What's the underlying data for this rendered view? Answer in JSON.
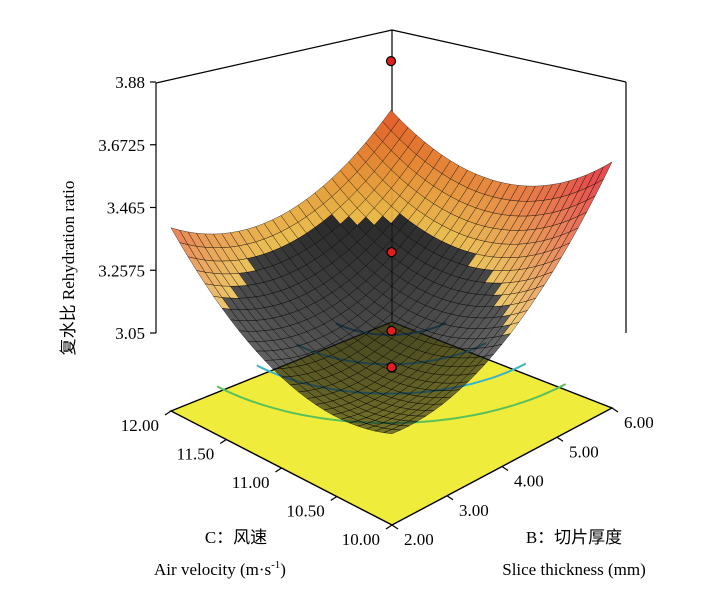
{
  "chart_data": {
    "type": "surface3d",
    "title": "",
    "zlabel": "复水比 Rehydration ratio",
    "xlabel_line1": "B：切片厚度",
    "xlabel_line2": "Slice thickness (mm)",
    "ylabel_line1": "C：风速",
    "ylabel_line2": "Air velocity (m·s",
    "ylabel_unit_exp": "-1",
    "ylabel_close": ")",
    "x_axis": {
      "name": "Slice thickness",
      "unit": "mm",
      "range": [
        2.0,
        6.0
      ],
      "ticks": [
        "2.00",
        "3.00",
        "4.00",
        "5.00",
        "6.00"
      ]
    },
    "y_axis": {
      "name": "Air velocity",
      "unit": "m·s-1",
      "range": [
        10.0,
        12.0
      ],
      "ticks": [
        "10.00",
        "10.50",
        "11.00",
        "11.50",
        "12.00"
      ]
    },
    "z_axis": {
      "name": "Rehydration ratio",
      "range": [
        3.05,
        3.88
      ],
      "ticks": [
        "3.05",
        "3.2575",
        "3.465",
        "3.6725",
        "3.88"
      ]
    },
    "surface_corners": [
      {
        "x": 2.0,
        "y": 10.0,
        "z": 3.32
      },
      {
        "x": 6.0,
        "y": 10.0,
        "z": 3.79
      },
      {
        "x": 2.0,
        "y": 12.0,
        "z": 3.6
      },
      {
        "x": 6.0,
        "y": 12.0,
        "z": 3.56
      }
    ],
    "surface_minimum": {
      "x": 3.3,
      "y": 10.8,
      "z": 3.28
    },
    "design_points": [
      {
        "x": 6.0,
        "y": 12.0,
        "z": 3.82
      },
      {
        "x": 4.0,
        "y": 11.0,
        "z": 3.57
      },
      {
        "x": 2.0,
        "y": 10.0,
        "z": 3.57
      },
      {
        "x": 4.0,
        "y": 11.0,
        "z": 3.31
      },
      {
        "x": 4.0,
        "y": 11.0,
        "z": 3.19
      }
    ],
    "contour_count": 4,
    "colors": {
      "floor": "#f0ec3c",
      "contour_low": "#1e96d2",
      "contour_mid": "#3cb4c8",
      "contour_high": "#5ac05a",
      "surface_low": "#e6b43c",
      "surface_high": "#e02020",
      "point_fill": "#e01e1e",
      "frame": "#000000"
    }
  }
}
